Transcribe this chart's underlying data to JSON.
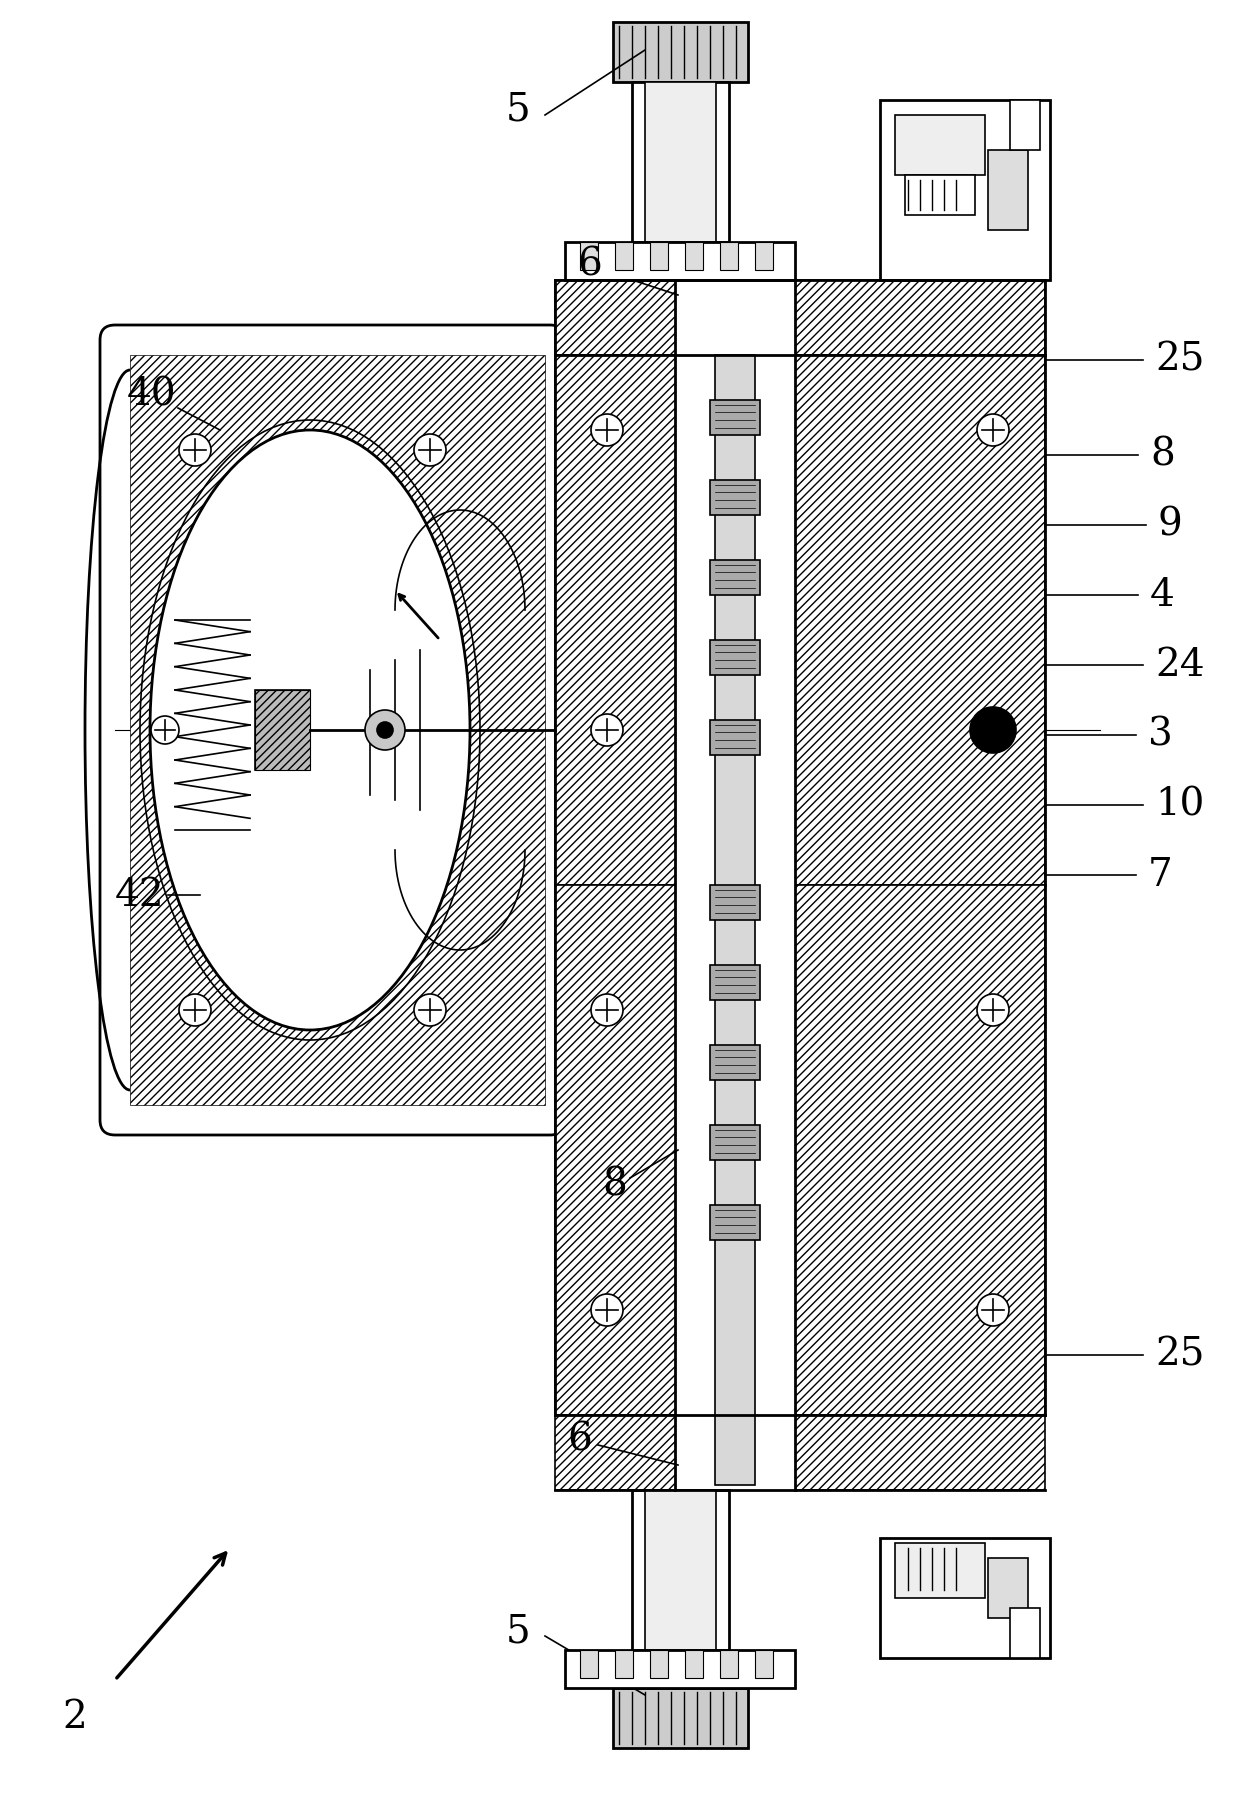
{
  "background_color": "#ffffff",
  "line_color": "#000000",
  "fig_width": 12.4,
  "fig_height": 18.18,
  "dpi": 100,
  "labels_right": [
    [
      "25",
      1155,
      360
    ],
    [
      "8",
      1150,
      455
    ],
    [
      "9",
      1158,
      525
    ],
    [
      "4",
      1150,
      595
    ],
    [
      "24",
      1155,
      665
    ],
    [
      "3",
      1148,
      735
    ],
    [
      "10",
      1155,
      805
    ],
    [
      "7",
      1148,
      875
    ],
    [
      "25",
      1155,
      1355
    ]
  ],
  "label_fontsize": 28
}
